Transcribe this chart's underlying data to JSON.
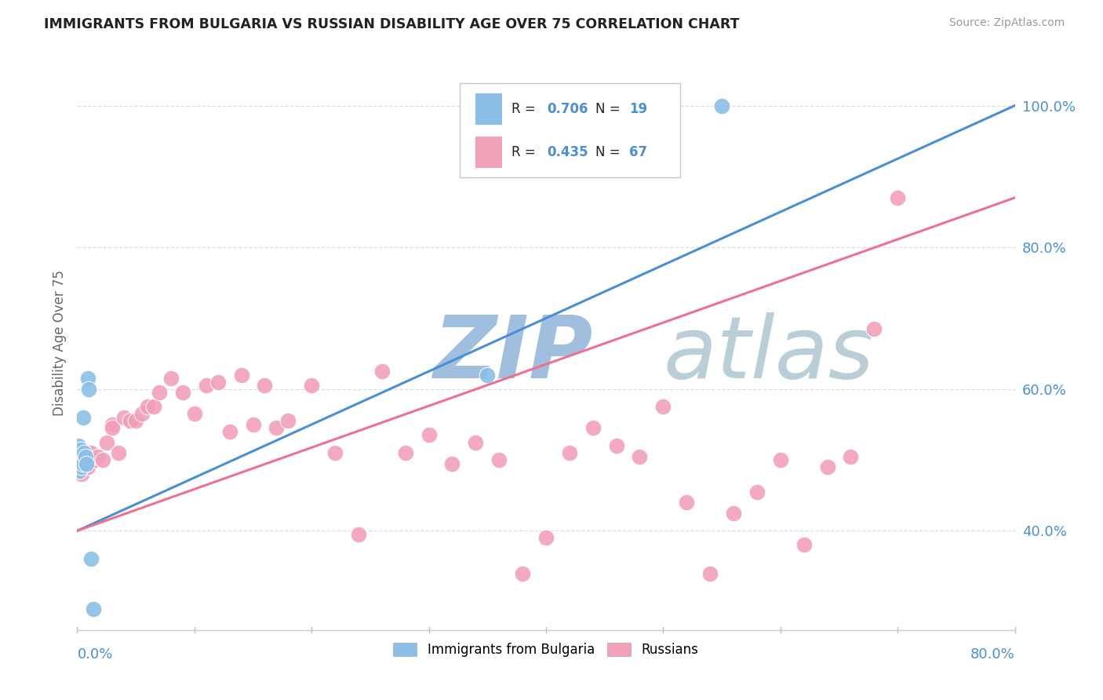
{
  "title": "IMMIGRANTS FROM BULGARIA VS RUSSIAN DISABILITY AGE OVER 75 CORRELATION CHART",
  "source": "Source: ZipAtlas.com",
  "ylabel": "Disability Age Over 75",
  "yticks": [
    "40.0%",
    "60.0%",
    "80.0%",
    "100.0%"
  ],
  "ytick_vals": [
    0.4,
    0.6,
    0.8,
    1.0
  ],
  "xlim": [
    0.0,
    0.8
  ],
  "ylim": [
    0.26,
    1.07
  ],
  "legend_r1": "R = 0.706",
  "legend_n1": "N = 19",
  "legend_r2": "R = 0.435",
  "legend_n2": "N = 67",
  "color_bulgaria": "#8BBFE8",
  "color_russia": "#F2A0B8",
  "color_line_bulgaria": "#4A8FD4",
  "color_line_russia": "#EF7090",
  "watermark_zip": "#A8C4E8",
  "watermark_atlas": "#B8D0F0",
  "bg_color": "#FFFFFF",
  "grid_color": "#DDDDDD",
  "bulgaria_x": [
    0.001,
    0.001,
    0.002,
    0.002,
    0.003,
    0.003,
    0.004,
    0.004,
    0.005,
    0.005,
    0.006,
    0.007,
    0.008,
    0.009,
    0.01,
    0.012,
    0.014,
    0.35,
    0.55
  ],
  "bulgaria_y": [
    0.5,
    0.52,
    0.485,
    0.505,
    0.495,
    0.515,
    0.505,
    0.49,
    0.495,
    0.56,
    0.51,
    0.505,
    0.495,
    0.615,
    0.6,
    0.36,
    0.29,
    0.62,
    1.0
  ],
  "russia_x": [
    0.001,
    0.001,
    0.002,
    0.002,
    0.003,
    0.003,
    0.004,
    0.004,
    0.005,
    0.005,
    0.006,
    0.007,
    0.008,
    0.009,
    0.01,
    0.012,
    0.015,
    0.018,
    0.022,
    0.025,
    0.03,
    0.03,
    0.035,
    0.04,
    0.045,
    0.05,
    0.055,
    0.06,
    0.065,
    0.07,
    0.08,
    0.09,
    0.1,
    0.11,
    0.12,
    0.13,
    0.14,
    0.15,
    0.16,
    0.17,
    0.18,
    0.2,
    0.22,
    0.24,
    0.26,
    0.28,
    0.3,
    0.32,
    0.34,
    0.36,
    0.38,
    0.4,
    0.42,
    0.44,
    0.46,
    0.48,
    0.5,
    0.52,
    0.54,
    0.56,
    0.58,
    0.6,
    0.62,
    0.64,
    0.66,
    0.68,
    0.7
  ],
  "russia_y": [
    0.495,
    0.505,
    0.49,
    0.51,
    0.5,
    0.515,
    0.495,
    0.48,
    0.505,
    0.49,
    0.505,
    0.495,
    0.51,
    0.49,
    0.5,
    0.51,
    0.5,
    0.505,
    0.5,
    0.525,
    0.55,
    0.545,
    0.51,
    0.56,
    0.555,
    0.555,
    0.565,
    0.575,
    0.575,
    0.595,
    0.615,
    0.595,
    0.565,
    0.605,
    0.61,
    0.54,
    0.62,
    0.55,
    0.605,
    0.545,
    0.555,
    0.605,
    0.51,
    0.395,
    0.625,
    0.51,
    0.535,
    0.495,
    0.525,
    0.5,
    0.34,
    0.39,
    0.51,
    0.545,
    0.52,
    0.505,
    0.575,
    0.44,
    0.34,
    0.425,
    0.455,
    0.5,
    0.38,
    0.49,
    0.505,
    0.685,
    0.87
  ],
  "line_bulgaria_x0": 0.0,
  "line_bulgaria_y0": 0.4,
  "line_bulgaria_x1": 0.8,
  "line_bulgaria_y1": 1.0,
  "line_russia_x0": 0.0,
  "line_russia_y0": 0.4,
  "line_russia_x1": 0.8,
  "line_russia_y1": 0.87
}
